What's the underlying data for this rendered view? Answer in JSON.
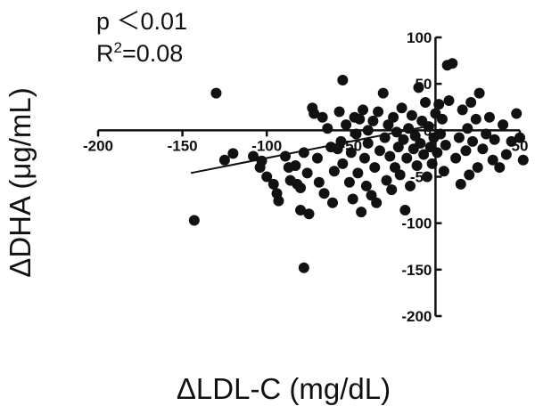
{
  "annotations": {
    "p_label": "p ＜0.01",
    "r2_prefix": "R",
    "r2_sup": "2",
    "r2_value": "=0.08"
  },
  "colors": {
    "ink": "#111111",
    "background": "#ffffff"
  },
  "chart_data": {
    "type": "scatter",
    "title": "",
    "xlabel": "ΔLDL-C (mg/dL)",
    "ylabel": "ΔDHA (μg/mL)",
    "xlim": [
      -200,
      50
    ],
    "ylim": [
      -200,
      100
    ],
    "x_ticks": [
      -200,
      -150,
      -100,
      -50,
      0,
      50
    ],
    "x_tick_labels": [
      "-200",
      "-150",
      "-100",
      "-50",
      "",
      "50"
    ],
    "y_ticks": [
      100,
      50,
      0,
      -50,
      -100,
      -150,
      -200
    ],
    "y_tick_labels": [
      "100",
      "50",
      "0",
      "-50",
      "-100",
      "-150",
      "-200"
    ],
    "axes_cross": "origin",
    "grid": false,
    "fit_line": {
      "x": [
        -145,
        0
      ],
      "y": [
        -46,
        6
      ]
    },
    "points": [
      [
        -130,
        40
      ],
      [
        -143,
        -97
      ],
      [
        -78,
        -148
      ],
      [
        -125,
        -32
      ],
      [
        -120,
        -25
      ],
      [
        -108,
        -28
      ],
      [
        -104,
        -40
      ],
      [
        -103,
        -33
      ],
      [
        -100,
        -50
      ],
      [
        -96,
        -58
      ],
      [
        -94,
        -68
      ],
      [
        -93,
        -76
      ],
      [
        -89,
        -28
      ],
      [
        -87,
        -40
      ],
      [
        -86,
        -54
      ],
      [
        -83,
        -38
      ],
      [
        -82,
        -58
      ],
      [
        -80,
        -86
      ],
      [
        -80,
        -62
      ],
      [
        -78,
        -24
      ],
      [
        -76,
        -46
      ],
      [
        -75,
        -90
      ],
      [
        -73,
        24
      ],
      [
        -72,
        18
      ],
      [
        -70,
        -30
      ],
      [
        -69,
        -56
      ],
      [
        -67,
        14
      ],
      [
        -66,
        -68
      ],
      [
        -64,
        2
      ],
      [
        -62,
        -18
      ],
      [
        -61,
        -78
      ],
      [
        -60,
        -44
      ],
      [
        -58,
        -20
      ],
      [
        -57,
        20
      ],
      [
        -56,
        -12
      ],
      [
        -55,
        -36
      ],
      [
        -55,
        54
      ],
      [
        -53,
        6
      ],
      [
        -51,
        -56
      ],
      [
        -50,
        -24
      ],
      [
        -49,
        -74
      ],
      [
        -48,
        14
      ],
      [
        -47,
        -4
      ],
      [
        -46,
        -46
      ],
      [
        -45,
        12
      ],
      [
        -44,
        -88
      ],
      [
        -43,
        22
      ],
      [
        -42,
        -30
      ],
      [
        -41,
        -60
      ],
      [
        -40,
        0
      ],
      [
        -40,
        -14
      ],
      [
        -38,
        -70
      ],
      [
        -37,
        10
      ],
      [
        -36,
        -40
      ],
      [
        -35,
        -78
      ],
      [
        -34,
        20
      ],
      [
        -33,
        -22
      ],
      [
        -31,
        40
      ],
      [
        -30,
        -8
      ],
      [
        -29,
        -54
      ],
      [
        -28,
        6
      ],
      [
        -27,
        -28
      ],
      [
        -26,
        -64
      ],
      [
        -25,
        14
      ],
      [
        -24,
        -40
      ],
      [
        -23,
        -2
      ],
      [
        -22,
        -18
      ],
      [
        -21,
        -48
      ],
      [
        -20,
        24
      ],
      [
        -19,
        -10
      ],
      [
        -18,
        -86
      ],
      [
        -17,
        -30
      ],
      [
        -16,
        2
      ],
      [
        -15,
        -60
      ],
      [
        -14,
        16
      ],
      [
        -13,
        -20
      ],
      [
        -12,
        -6
      ],
      [
        -11,
        -38
      ],
      [
        -10,
        46
      ],
      [
        -9,
        -14
      ],
      [
        -8,
        10
      ],
      [
        -7,
        -26
      ],
      [
        -6,
        30
      ],
      [
        -5,
        -50
      ],
      [
        -4,
        4
      ],
      [
        -3,
        -18
      ],
      [
        -2,
        -36
      ],
      [
        -1,
        -8
      ],
      [
        0,
        18
      ],
      [
        1,
        -24
      ],
      [
        2,
        28
      ],
      [
        3,
        -4
      ],
      [
        4,
        12
      ],
      [
        5,
        -44
      ],
      [
        6,
        -16
      ],
      [
        7,
        70
      ],
      [
        8,
        32
      ],
      [
        10,
        72
      ],
      [
        12,
        -30
      ],
      [
        14,
        -8
      ],
      [
        15,
        -58
      ],
      [
        16,
        22
      ],
      [
        18,
        -22
      ],
      [
        19,
        2
      ],
      [
        20,
        -48
      ],
      [
        21,
        30
      ],
      [
        22,
        -12
      ],
      [
        24,
        12
      ],
      [
        25,
        -40
      ],
      [
        26,
        40
      ],
      [
        28,
        -20
      ],
      [
        30,
        -4
      ],
      [
        32,
        14
      ],
      [
        34,
        -32
      ],
      [
        35,
        -10
      ],
      [
        38,
        -40
      ],
      [
        40,
        6
      ],
      [
        42,
        -26
      ],
      [
        45,
        -12
      ],
      [
        48,
        18
      ],
      [
        50,
        -8
      ],
      [
        52,
        -32
      ]
    ]
  }
}
